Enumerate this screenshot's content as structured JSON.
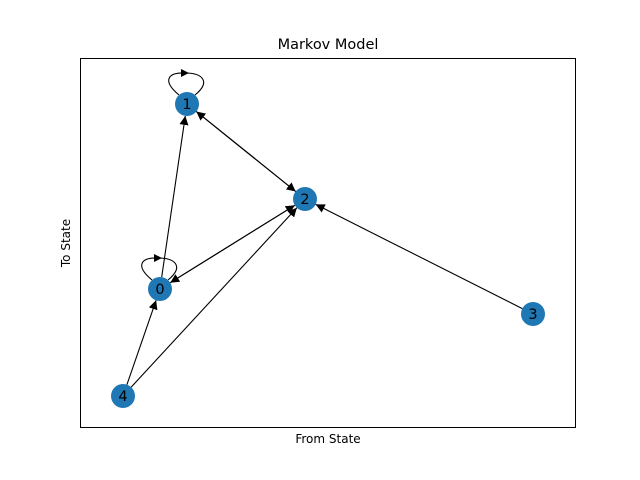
{
  "chart": {
    "title": "Markov Model",
    "xlabel": "From State",
    "ylabel": "To State",
    "node_color": "#1f77b4",
    "edge_color": "#000000",
    "nodes": [
      {
        "id": "0",
        "label": "0",
        "self_loop": true
      },
      {
        "id": "1",
        "label": "1",
        "self_loop": true
      },
      {
        "id": "2",
        "label": "2",
        "self_loop": false
      },
      {
        "id": "3",
        "label": "3",
        "self_loop": false
      },
      {
        "id": "4",
        "label": "4",
        "self_loop": false
      }
    ],
    "edges": [
      {
        "from": "0",
        "to": "1"
      },
      {
        "from": "1",
        "to": "2"
      },
      {
        "from": "2",
        "to": "1"
      },
      {
        "from": "0",
        "to": "2"
      },
      {
        "from": "2",
        "to": "0"
      },
      {
        "from": "3",
        "to": "2"
      },
      {
        "from": "4",
        "to": "0"
      },
      {
        "from": "4",
        "to": "2"
      }
    ]
  }
}
